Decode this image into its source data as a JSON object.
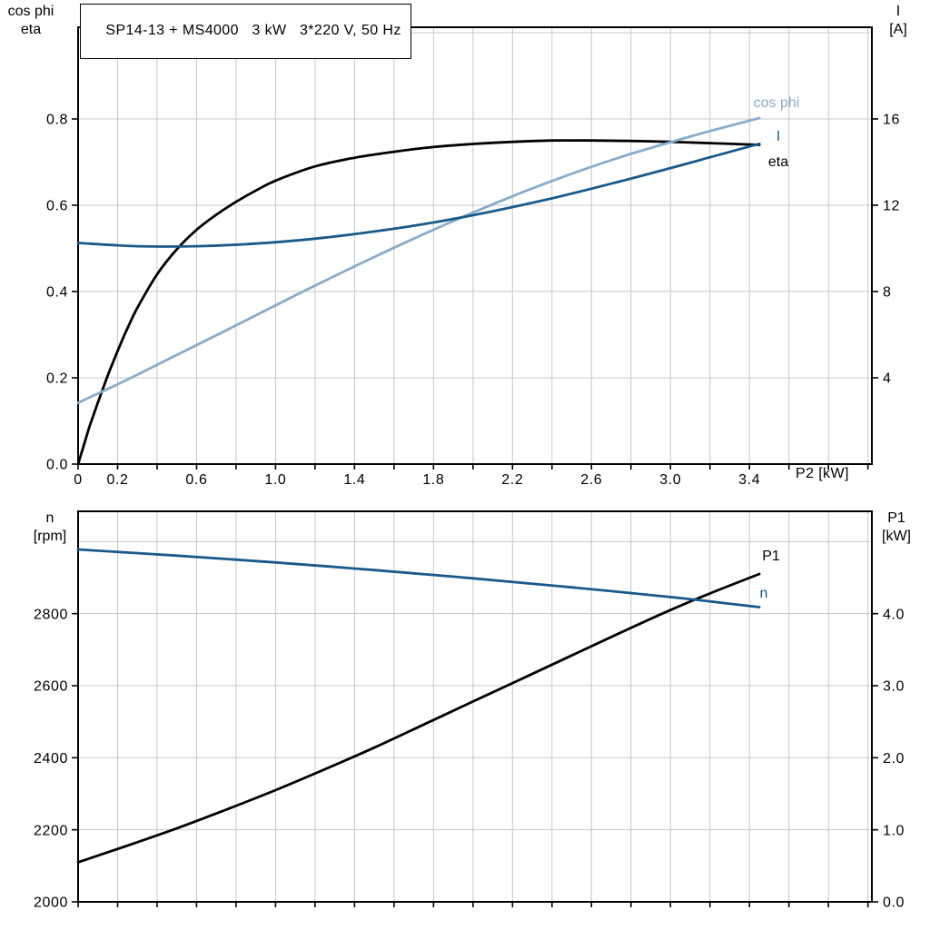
{
  "colors": {
    "black": "#000000",
    "dark_blue": "#1a5a8a",
    "light_blue": "#88accb",
    "grid": "#c8c8c8",
    "frame": "#000000",
    "background": "#ffffff"
  },
  "chart_data": [
    {
      "type": "line",
      "title": "SP14-13 + MS4000   3 kW   3*220 V, 50 Hz",
      "x_axis": {
        "label": "P2 [kW]",
        "min": 0,
        "max": 4.02,
        "grid_step": 0.2,
        "ticks": [
          {
            "v": 0,
            "t": "0"
          },
          {
            "v": 0.2,
            "t": "0.2"
          },
          {
            "v": 0.6,
            "t": "0.6"
          },
          {
            "v": 1.0,
            "t": "1.0"
          },
          {
            "v": 1.4,
            "t": "1.4"
          },
          {
            "v": 1.8,
            "t": "1.8"
          },
          {
            "v": 2.2,
            "t": "2.2"
          },
          {
            "v": 2.6,
            "t": "2.6"
          },
          {
            "v": 3.0,
            "t": "3.0"
          },
          {
            "v": 3.4,
            "t": "3.4"
          }
        ]
      },
      "y_left": {
        "label_lines": [
          "cos phi",
          "eta"
        ],
        "min": 0,
        "max": 1.0126,
        "grid_values": [
          0.2,
          0.4,
          0.6,
          0.8,
          1.0
        ],
        "ticks": [
          {
            "v": 0.0,
            "t": "0.0"
          },
          {
            "v": 0.2,
            "t": "0.2"
          },
          {
            "v": 0.4,
            "t": "0.4"
          },
          {
            "v": 0.6,
            "t": "0.6"
          },
          {
            "v": 0.8,
            "t": "0.8"
          }
        ]
      },
      "y_right": {
        "label_lines": [
          "I",
          "[A]"
        ],
        "min": 0,
        "max": 20.25,
        "ticks": [
          {
            "v": 4,
            "t": "4"
          },
          {
            "v": 8,
            "t": "8"
          },
          {
            "v": 12,
            "t": "12"
          },
          {
            "v": 16,
            "t": "16"
          }
        ]
      },
      "series": [
        {
          "name": "eta",
          "axis": "left",
          "color": "black",
          "x": [
            0,
            0.03,
            0.06,
            0.1,
            0.15,
            0.2,
            0.25,
            0.3,
            0.4,
            0.5,
            0.6,
            0.7,
            0.8,
            0.9,
            1.0,
            1.2,
            1.4,
            1.6,
            1.8,
            2.0,
            2.2,
            2.4,
            2.6,
            2.8,
            3.0,
            3.2,
            3.45
          ],
          "y": [
            0,
            0.045,
            0.09,
            0.142,
            0.205,
            0.262,
            0.315,
            0.362,
            0.44,
            0.498,
            0.543,
            0.578,
            0.608,
            0.634,
            0.657,
            0.69,
            0.71,
            0.724,
            0.735,
            0.742,
            0.747,
            0.75,
            0.75,
            0.749,
            0.747,
            0.744,
            0.74
          ]
        },
        {
          "name": "cos phi",
          "axis": "left",
          "color": "light_blue",
          "x": [
            0,
            0.25,
            0.5,
            0.75,
            1.0,
            1.25,
            1.5,
            1.75,
            2.0,
            2.25,
            2.5,
            2.75,
            3.0,
            3.2,
            3.45
          ],
          "y": [
            0.142,
            0.196,
            0.253,
            0.31,
            0.368,
            0.425,
            0.48,
            0.533,
            0.583,
            0.63,
            0.673,
            0.712,
            0.746,
            0.772,
            0.802
          ]
        },
        {
          "name": "I",
          "axis": "right",
          "color": "dark_blue",
          "x": [
            0,
            0.3,
            0.6,
            0.9,
            1.2,
            1.5,
            1.8,
            2.1,
            2.4,
            2.7,
            3.0,
            3.2,
            3.45
          ],
          "y": [
            10.25,
            10.1,
            10.1,
            10.22,
            10.45,
            10.78,
            11.2,
            11.72,
            12.32,
            13.0,
            13.72,
            14.22,
            14.85
          ]
        }
      ]
    },
    {
      "type": "line",
      "title": "",
      "x_axis": {
        "label": "",
        "min": 0,
        "max": 4.02,
        "grid_step": 0.2,
        "ticks": []
      },
      "y_left": {
        "label_lines": [
          "n",
          "[rpm]"
        ],
        "min": 2000,
        "max": 3084,
        "grid_values": [
          2200,
          2400,
          2600,
          2800,
          3000
        ],
        "ticks": [
          {
            "v": 2000,
            "t": "2000"
          },
          {
            "v": 2200,
            "t": "2200"
          },
          {
            "v": 2400,
            "t": "2400"
          },
          {
            "v": 2600,
            "t": "2600"
          },
          {
            "v": 2800,
            "t": "2800"
          }
        ]
      },
      "y_right": {
        "label_lines": [
          "P1",
          "[kW]"
        ],
        "min": 0,
        "max": 5.42,
        "ticks": [
          {
            "v": 0,
            "t": "0.0"
          },
          {
            "v": 1,
            "t": "1.0"
          },
          {
            "v": 2,
            "t": "2.0"
          },
          {
            "v": 3,
            "t": "3.0"
          },
          {
            "v": 4,
            "t": "4.0"
          }
        ]
      },
      "series": [
        {
          "name": "P1",
          "axis": "right",
          "color": "black",
          "x": [
            0,
            0.25,
            0.5,
            0.75,
            1.0,
            1.25,
            1.5,
            1.75,
            2.0,
            2.25,
            2.5,
            2.75,
            3.0,
            3.2,
            3.45
          ],
          "y": [
            0.55,
            0.78,
            1.02,
            1.28,
            1.55,
            1.84,
            2.14,
            2.46,
            2.78,
            3.1,
            3.42,
            3.74,
            4.05,
            4.28,
            4.55
          ]
        },
        {
          "name": "n",
          "axis": "left",
          "color": "dark_blue",
          "x": [
            0,
            0.5,
            1.0,
            1.5,
            2.0,
            2.5,
            3.0,
            3.2,
            3.45
          ],
          "y": [
            2978,
            2961,
            2942,
            2921,
            2898,
            2873,
            2846,
            2834,
            2818
          ]
        }
      ]
    }
  ]
}
